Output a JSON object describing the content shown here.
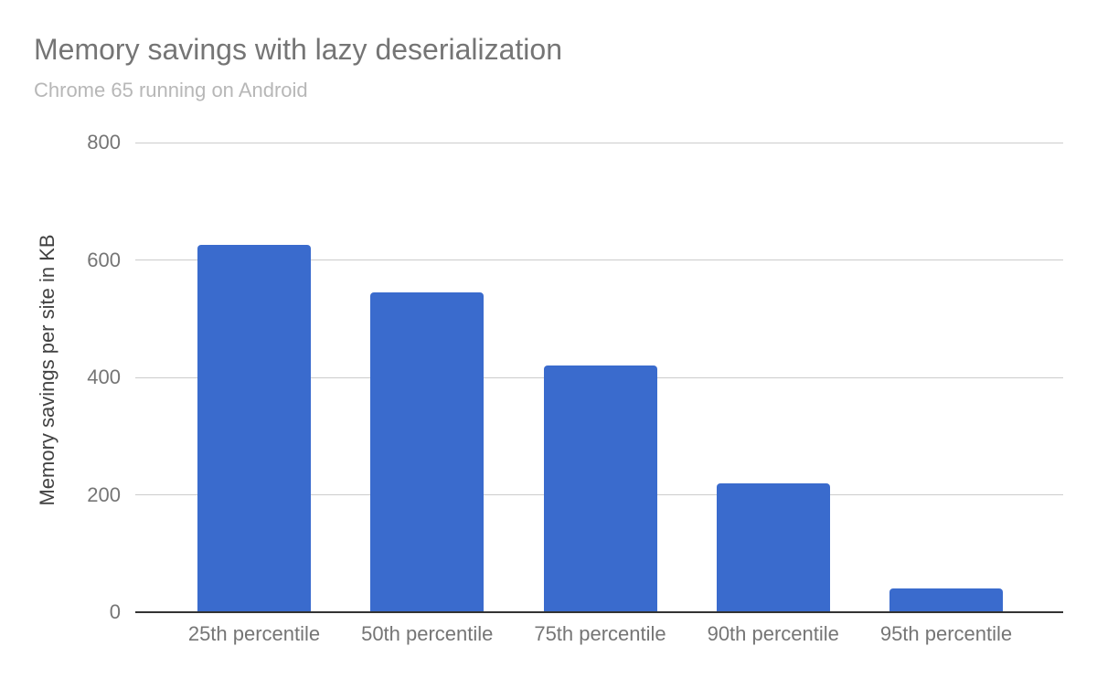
{
  "chart_data": {
    "type": "bar",
    "title": "Memory savings with lazy deserialization",
    "subtitle": "Chrome 65 running on Android",
    "categories": [
      "25th percentile",
      "50th percentile",
      "75th percentile",
      "90th percentile",
      "95th percentile"
    ],
    "values": [
      625,
      545,
      420,
      220,
      40
    ],
    "xlabel": "",
    "ylabel": "Memory savings per site in KB",
    "ylim": [
      0,
      800
    ],
    "yticks": [
      0,
      200,
      400,
      600,
      800
    ],
    "grid": true,
    "legend": "none",
    "bar_color": "#3a6bcd",
    "colors": {
      "title": "#757575",
      "subtitle": "#b7b7b7",
      "axis_title": "#424242",
      "tick_label": "#757575",
      "gridline": "#cccccc",
      "baseline": "#333333",
      "background": "#ffffff"
    }
  }
}
